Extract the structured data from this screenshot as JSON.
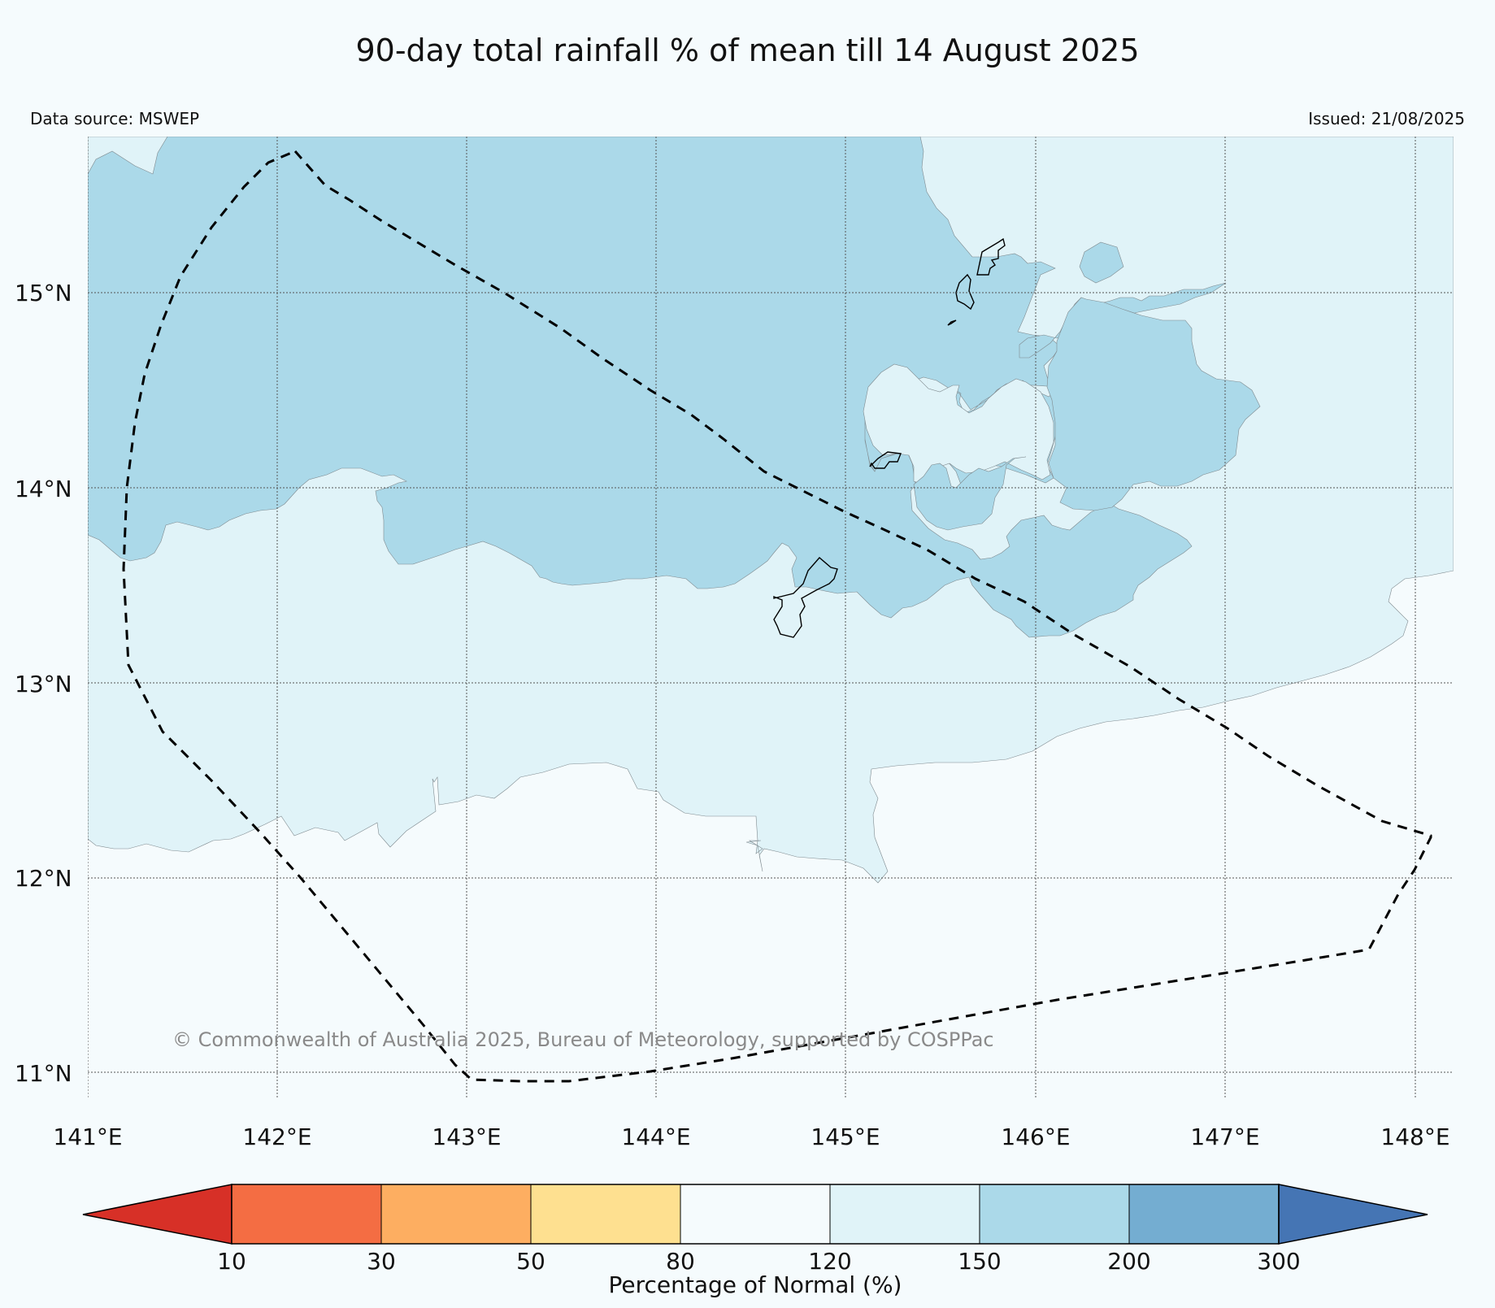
{
  "title": "90-day total rainfall % of mean till 14 August 2025",
  "data_source": "Data source: MSWEP",
  "issued": "Issued: 21/08/2025",
  "copyright": "© Commonwealth of Australia 2025, Bureau of Meteorology, supported by COSPPac",
  "map": {
    "lon_range": [
      141,
      148.2
    ],
    "lat_range": [
      10.85,
      15.82
    ],
    "lon_ticks": [
      "141°E",
      "142°E",
      "143°E",
      "144°E",
      "145°E",
      "146°E",
      "147°E",
      "148°E"
    ],
    "lat_ticks": [
      "15°N",
      "14°N",
      "13°N",
      "12°N",
      "11°N"
    ],
    "gridlines": true
  },
  "colorbar": {
    "label": "Percentage of Normal (%)",
    "ticks": [
      "10",
      "30",
      "50",
      "80",
      "120",
      "150",
      "200",
      "300"
    ],
    "colors": [
      "#d73027",
      "#f46d43",
      "#fdae61",
      "#fee090",
      "#f5fbfd",
      "#e0f3f8",
      "#abd9e9",
      "#74add1",
      "#4575b4"
    ]
  }
}
